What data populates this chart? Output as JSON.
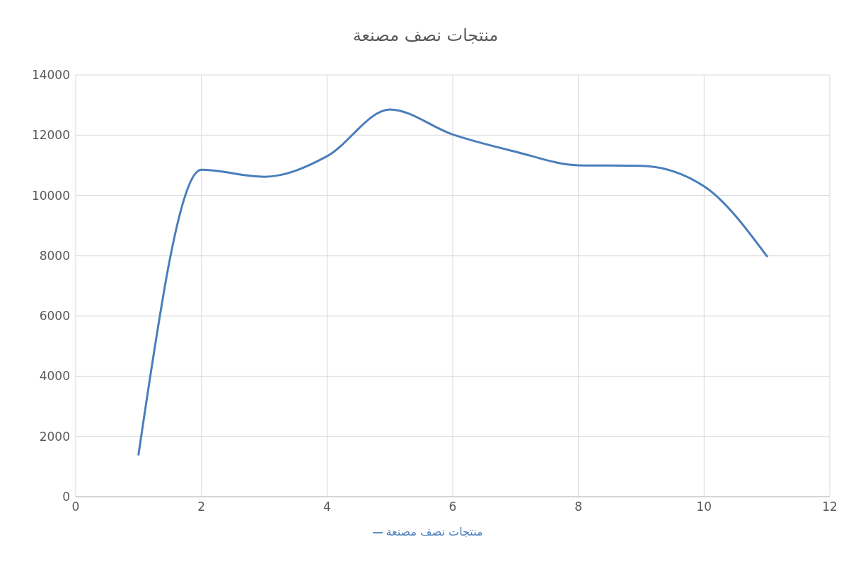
{
  "chart_data": {
    "type": "line",
    "title": "منتجات نصف مصنعة",
    "x": [
      1,
      2,
      3,
      4,
      5,
      6,
      7,
      8,
      9,
      10,
      11
    ],
    "series": [
      {
        "name": "منتجات نصف مصنعة",
        "color": "#4a7ebb",
        "values": [
          1400,
          10850,
          10620,
          11300,
          12850,
          12020,
          11450,
          11000,
          10980,
          10300,
          7980
        ]
      }
    ],
    "xlim": [
      0,
      12
    ],
    "xticks": [
      0,
      2,
      4,
      6,
      8,
      10,
      12
    ],
    "ylim": [
      0,
      14000
    ],
    "yticks": [
      0,
      2000,
      4000,
      6000,
      8000,
      10000,
      12000,
      14000
    ],
    "grid": true,
    "legend": "bottom",
    "marker": "none",
    "line_style": "solid"
  }
}
